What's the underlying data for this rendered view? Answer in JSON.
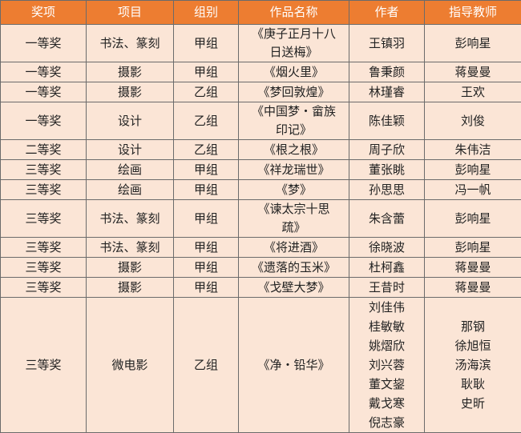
{
  "columns": [
    "奖项",
    "项目",
    "组别",
    "作品名称",
    "作者",
    "指导教师"
  ],
  "rows": [
    {
      "award": "一等奖",
      "category": "书法、篆刻",
      "group": "甲组",
      "title": "《庚子正月十八日送梅》",
      "authors": [
        "王镇羽"
      ],
      "teachers": [
        "彭响星"
      ]
    },
    {
      "award": "一等奖",
      "category": "摄影",
      "group": "甲组",
      "title": "《烟火里》",
      "authors": [
        "鲁秉颜"
      ],
      "teachers": [
        "蒋曼曼"
      ]
    },
    {
      "award": "一等奖",
      "category": "摄影",
      "group": "乙组",
      "title": "《梦回敦煌》",
      "authors": [
        "林瑾睿"
      ],
      "teachers": [
        "王欢"
      ]
    },
    {
      "award": "一等奖",
      "category": "设计",
      "group": "乙组",
      "title": "《中国梦・畲族印记》",
      "authors": [
        "陈佳颖"
      ],
      "teachers": [
        "刘俊"
      ]
    },
    {
      "award": "二等奖",
      "category": "设计",
      "group": "乙组",
      "title": "《根之根》",
      "authors": [
        "周子欣"
      ],
      "teachers": [
        "朱伟洁"
      ]
    },
    {
      "award": "三等奖",
      "category": "绘画",
      "group": "甲组",
      "title": "《祥龙瑞世》",
      "authors": [
        "董张眺"
      ],
      "teachers": [
        "彭响星"
      ]
    },
    {
      "award": "三等奖",
      "category": "绘画",
      "group": "甲组",
      "title": "《梦》",
      "authors": [
        "孙思思"
      ],
      "teachers": [
        "冯一帆"
      ]
    },
    {
      "award": "三等奖",
      "category": "书法、篆刻",
      "group": "甲组",
      "title": "《谏太宗十思疏》",
      "authors": [
        "朱含蕾"
      ],
      "teachers": [
        "彭响星"
      ]
    },
    {
      "award": "三等奖",
      "category": "书法、篆刻",
      "group": "甲组",
      "title": "《将进酒》",
      "authors": [
        "徐晓波"
      ],
      "teachers": [
        "彭响星"
      ]
    },
    {
      "award": "三等奖",
      "category": "摄影",
      "group": "甲组",
      "title": "《遗落的玉米》",
      "authors": [
        "杜柯鑫"
      ],
      "teachers": [
        "蒋曼曼"
      ]
    },
    {
      "award": "三等奖",
      "category": "摄影",
      "group": "甲组",
      "title": "《戈壁大梦》",
      "authors": [
        "王昔时"
      ],
      "teachers": [
        "蒋曼曼"
      ]
    },
    {
      "award": "三等奖",
      "category": "微电影",
      "group": "乙组",
      "title": "《净・铅华》",
      "authors": [
        "刘佳伟",
        "桂敏敏",
        "姚熠欣",
        "刘兴蓉",
        "董文鋆",
        "戴戈寒",
        "倪志豪"
      ],
      "teachers": [
        "那钢",
        "徐旭恒",
        "汤海滨",
        "耿耿",
        "史昕"
      ]
    }
  ],
  "colors": {
    "header": "#ed7d31",
    "cell": "#fbe5d6"
  }
}
